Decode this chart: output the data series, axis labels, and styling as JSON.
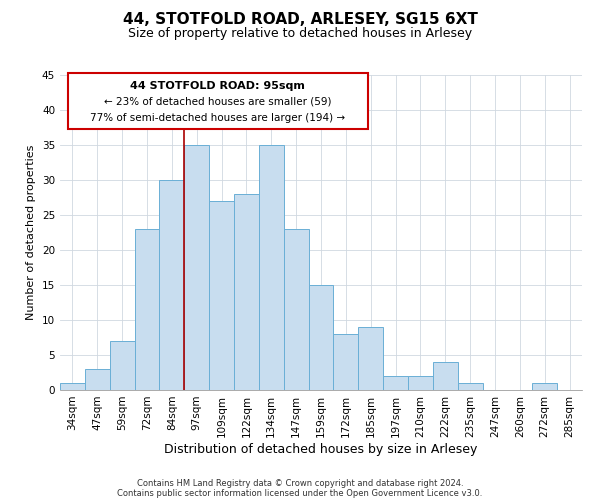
{
  "title": "44, STOTFOLD ROAD, ARLESEY, SG15 6XT",
  "subtitle": "Size of property relative to detached houses in Arlesey",
  "xlabel": "Distribution of detached houses by size in Arlesey",
  "ylabel": "Number of detached properties",
  "bar_labels": [
    "34sqm",
    "47sqm",
    "59sqm",
    "72sqm",
    "84sqm",
    "97sqm",
    "109sqm",
    "122sqm",
    "134sqm",
    "147sqm",
    "159sqm",
    "172sqm",
    "185sqm",
    "197sqm",
    "210sqm",
    "222sqm",
    "235sqm",
    "247sqm",
    "260sqm",
    "272sqm",
    "285sqm"
  ],
  "bar_values": [
    1,
    3,
    7,
    23,
    30,
    35,
    27,
    28,
    35,
    23,
    15,
    8,
    9,
    2,
    2,
    4,
    1,
    0,
    0,
    1,
    0
  ],
  "bar_color": "#c8ddef",
  "bar_edge_color": "#6aafd6",
  "grid_color": "#d0d8e0",
  "vline_x_index": 5,
  "vline_color": "#aa0000",
  "annotation_text_line1": "44 STOTFOLD ROAD: 95sqm",
  "annotation_text_line2": "← 23% of detached houses are smaller (59)",
  "annotation_text_line3": "77% of semi-detached houses are larger (194) →",
  "footnote1": "Contains HM Land Registry data © Crown copyright and database right 2024.",
  "footnote2": "Contains public sector information licensed under the Open Government Licence v3.0.",
  "ylim": [
    0,
    45
  ],
  "yticks": [
    0,
    5,
    10,
    15,
    20,
    25,
    30,
    35,
    40,
    45
  ],
  "background_color": "#ffffff",
  "title_fontsize": 11,
  "subtitle_fontsize": 9,
  "ylabel_fontsize": 8,
  "xlabel_fontsize": 9,
  "tick_fontsize": 7.5
}
